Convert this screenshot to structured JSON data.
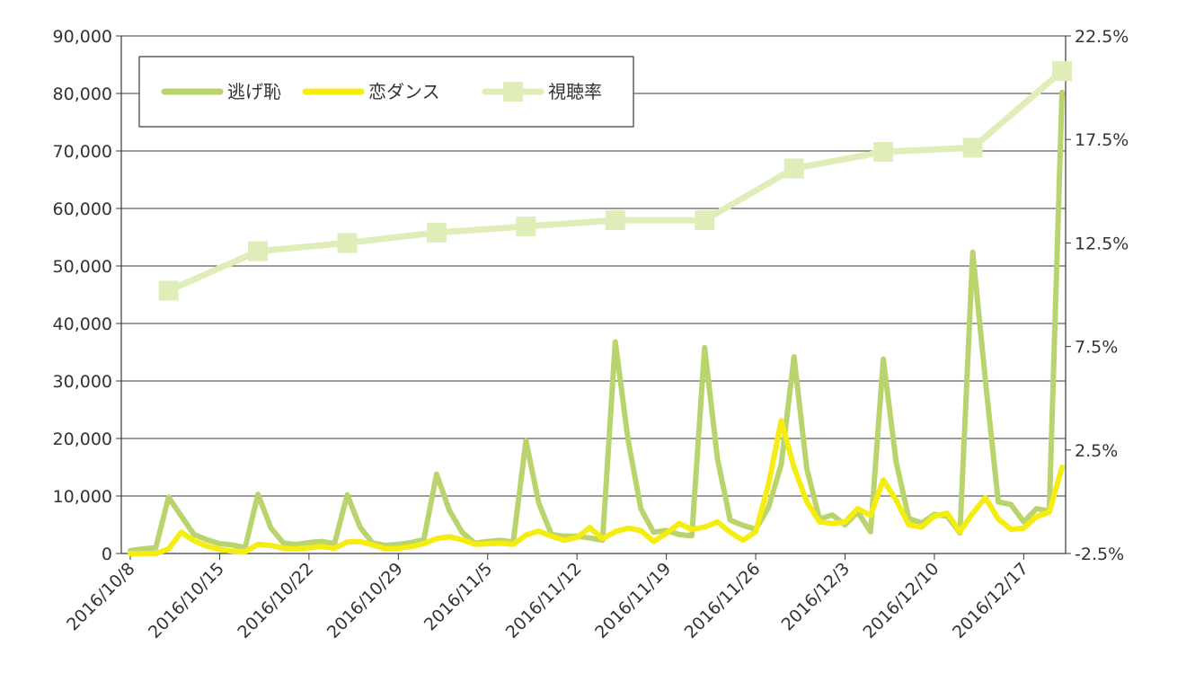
{
  "chart_data": {
    "type": "line",
    "title": "",
    "xlabel": "",
    "ylabel": "",
    "y_left": {
      "min": 0,
      "max": 90000,
      "step": 10000,
      "tick_labels": [
        "0",
        "10,000",
        "20,000",
        "30,000",
        "40,000",
        "50,000",
        "60,000",
        "70,000",
        "80,000",
        "90,000"
      ]
    },
    "y_right": {
      "min": -2.5,
      "max": 22.5,
      "step": 5,
      "tick_labels": [
        "-2.5%",
        "2.5%",
        "7.5%",
        "12.5%",
        "17.5%",
        "22.5%"
      ]
    },
    "x": {
      "start": "2016-10-08",
      "end": "2016-12-20",
      "tick_dates": [
        "2016-10-08",
        "2016-10-15",
        "2016-10-22",
        "2016-10-29",
        "2016-11-05",
        "2016-11-12",
        "2016-11-19",
        "2016-11-26",
        "2016-12-03",
        "2016-12-10",
        "2016-12-17"
      ],
      "tick_labels": [
        "2016/10/8",
        "2016/10/15",
        "2016/10/22",
        "2016/10/29",
        "2016/11/5",
        "2016/11/12",
        "2016/11/19",
        "2016/11/26",
        "2016/12/3",
        "2016/12/10",
        "2016/12/17"
      ]
    },
    "grid": true,
    "legend_position": "top-left",
    "series": [
      {
        "name": "逃げ恥",
        "axis": "left",
        "color": "#b9d46d",
        "marker": "none",
        "points": [
          [
            "2016-10-08",
            500
          ],
          [
            "2016-10-09",
            800
          ],
          [
            "2016-10-10",
            1000
          ],
          [
            "2016-10-11",
            9800
          ],
          [
            "2016-10-12",
            6500
          ],
          [
            "2016-10-13",
            3300
          ],
          [
            "2016-10-14",
            2400
          ],
          [
            "2016-10-15",
            1700
          ],
          [
            "2016-10-16",
            1500
          ],
          [
            "2016-10-17",
            1000
          ],
          [
            "2016-10-18",
            10300
          ],
          [
            "2016-10-19",
            4500
          ],
          [
            "2016-10-20",
            1800
          ],
          [
            "2016-10-21",
            1600
          ],
          [
            "2016-10-22",
            1900
          ],
          [
            "2016-10-23",
            2100
          ],
          [
            "2016-10-24",
            1700
          ],
          [
            "2016-10-25",
            10200
          ],
          [
            "2016-10-26",
            4600
          ],
          [
            "2016-10-27",
            1800
          ],
          [
            "2016-10-28",
            1400
          ],
          [
            "2016-10-29",
            1600
          ],
          [
            "2016-10-30",
            1900
          ],
          [
            "2016-10-31",
            2400
          ],
          [
            "2016-11-01",
            13800
          ],
          [
            "2016-11-02",
            7500
          ],
          [
            "2016-11-03",
            3700
          ],
          [
            "2016-11-04",
            1800
          ],
          [
            "2016-11-05",
            2100
          ],
          [
            "2016-11-06",
            2300
          ],
          [
            "2016-11-07",
            2000
          ],
          [
            "2016-11-08",
            19600
          ],
          [
            "2016-11-09",
            8800
          ],
          [
            "2016-11-10",
            3300
          ],
          [
            "2016-11-11",
            3000
          ],
          [
            "2016-11-12",
            3000
          ],
          [
            "2016-11-13",
            2700
          ],
          [
            "2016-11-14",
            2300
          ],
          [
            "2016-11-15",
            36800
          ],
          [
            "2016-11-16",
            19800
          ],
          [
            "2016-11-17",
            7800
          ],
          [
            "2016-11-18",
            3700
          ],
          [
            "2016-11-19",
            4000
          ],
          [
            "2016-11-20",
            3300
          ],
          [
            "2016-11-21",
            3100
          ],
          [
            "2016-11-22",
            35800
          ],
          [
            "2016-11-23",
            16500
          ],
          [
            "2016-11-24",
            5800
          ],
          [
            "2016-11-25",
            4900
          ],
          [
            "2016-11-26",
            4200
          ],
          [
            "2016-11-27",
            8000
          ],
          [
            "2016-11-28",
            15500
          ],
          [
            "2016-11-29",
            34200
          ],
          [
            "2016-11-30",
            14800
          ],
          [
            "2016-12-01",
            6000
          ],
          [
            "2016-12-02",
            6700
          ],
          [
            "2016-12-03",
            5000
          ],
          [
            "2016-12-04",
            7200
          ],
          [
            "2016-12-05",
            3800
          ],
          [
            "2016-12-06",
            33800
          ],
          [
            "2016-12-07",
            16000
          ],
          [
            "2016-12-08",
            6100
          ],
          [
            "2016-12-09",
            5300
          ],
          [
            "2016-12-10",
            6800
          ],
          [
            "2016-12-11",
            6500
          ],
          [
            "2016-12-12",
            3600
          ],
          [
            "2016-12-13",
            52400
          ],
          [
            "2016-12-14",
            30000
          ],
          [
            "2016-12-15",
            9000
          ],
          [
            "2016-12-16",
            8500
          ],
          [
            "2016-12-17",
            5500
          ],
          [
            "2016-12-18",
            7800
          ],
          [
            "2016-12-19",
            7400
          ],
          [
            "2016-12-20",
            80200
          ]
        ]
      },
      {
        "name": "恋ダンス",
        "axis": "left",
        "color": "#f5ec10",
        "marker": "none",
        "points": [
          [
            "2016-10-08",
            0
          ],
          [
            "2016-10-09",
            0
          ],
          [
            "2016-10-10",
            0
          ],
          [
            "2016-10-11",
            800
          ],
          [
            "2016-10-12",
            3700
          ],
          [
            "2016-10-13",
            2200
          ],
          [
            "2016-10-14",
            1300
          ],
          [
            "2016-10-15",
            700
          ],
          [
            "2016-10-16",
            400
          ],
          [
            "2016-10-17",
            300
          ],
          [
            "2016-10-18",
            1600
          ],
          [
            "2016-10-19",
            1400
          ],
          [
            "2016-10-20",
            900
          ],
          [
            "2016-10-21",
            800
          ],
          [
            "2016-10-22",
            1000
          ],
          [
            "2016-10-23",
            1200
          ],
          [
            "2016-10-24",
            900
          ],
          [
            "2016-10-25",
            2000
          ],
          [
            "2016-10-26",
            2100
          ],
          [
            "2016-10-27",
            1500
          ],
          [
            "2016-10-28",
            800
          ],
          [
            "2016-10-29",
            900
          ],
          [
            "2016-10-30",
            1200
          ],
          [
            "2016-10-31",
            1700
          ],
          [
            "2016-11-01",
            2600
          ],
          [
            "2016-11-02",
            2900
          ],
          [
            "2016-11-03",
            2400
          ],
          [
            "2016-11-04",
            1600
          ],
          [
            "2016-11-05",
            1700
          ],
          [
            "2016-11-06",
            1800
          ],
          [
            "2016-11-07",
            1600
          ],
          [
            "2016-11-08",
            3200
          ],
          [
            "2016-11-09",
            3900
          ],
          [
            "2016-11-10",
            3000
          ],
          [
            "2016-11-11",
            2300
          ],
          [
            "2016-11-12",
            2800
          ],
          [
            "2016-11-13",
            4500
          ],
          [
            "2016-11-14",
            2600
          ],
          [
            "2016-11-15",
            3800
          ],
          [
            "2016-11-16",
            4400
          ],
          [
            "2016-11-17",
            4000
          ],
          [
            "2016-11-18",
            2100
          ],
          [
            "2016-11-19",
            3500
          ],
          [
            "2016-11-20",
            5200
          ],
          [
            "2016-11-21",
            4200
          ],
          [
            "2016-11-22",
            4600
          ],
          [
            "2016-11-23",
            5500
          ],
          [
            "2016-11-24",
            3700
          ],
          [
            "2016-11-25",
            2300
          ],
          [
            "2016-11-26",
            3800
          ],
          [
            "2016-11-27",
            12000
          ],
          [
            "2016-11-28",
            23100
          ],
          [
            "2016-11-29",
            15000
          ],
          [
            "2016-11-30",
            9000
          ],
          [
            "2016-12-01",
            5500
          ],
          [
            "2016-12-02",
            5200
          ],
          [
            "2016-12-03",
            5500
          ],
          [
            "2016-12-04",
            7800
          ],
          [
            "2016-12-05",
            6600
          ],
          [
            "2016-12-06",
            12800
          ],
          [
            "2016-12-07",
            9300
          ],
          [
            "2016-12-08",
            5000
          ],
          [
            "2016-12-09",
            4600
          ],
          [
            "2016-12-10",
            6500
          ],
          [
            "2016-12-11",
            7000
          ],
          [
            "2016-12-12",
            3800
          ],
          [
            "2016-12-13",
            7000
          ],
          [
            "2016-12-14",
            9700
          ],
          [
            "2016-12-15",
            6000
          ],
          [
            "2016-12-16",
            4200
          ],
          [
            "2016-12-17",
            4400
          ],
          [
            "2016-12-18",
            6400
          ],
          [
            "2016-12-19",
            7200
          ],
          [
            "2016-12-20",
            15000
          ]
        ]
      },
      {
        "name": "視聴率",
        "axis": "right",
        "color": "#dfeeb8",
        "marker": "square",
        "points": [
          [
            "2016-10-11",
            10.2
          ],
          [
            "2016-10-18",
            12.1
          ],
          [
            "2016-10-25",
            12.5
          ],
          [
            "2016-11-01",
            13.0
          ],
          [
            "2016-11-08",
            13.3
          ],
          [
            "2016-11-15",
            13.6
          ],
          [
            "2016-11-22",
            13.6
          ],
          [
            "2016-11-29",
            16.1
          ],
          [
            "2016-12-06",
            16.9
          ],
          [
            "2016-12-13",
            17.1
          ],
          [
            "2016-12-20",
            20.8
          ]
        ]
      }
    ]
  }
}
